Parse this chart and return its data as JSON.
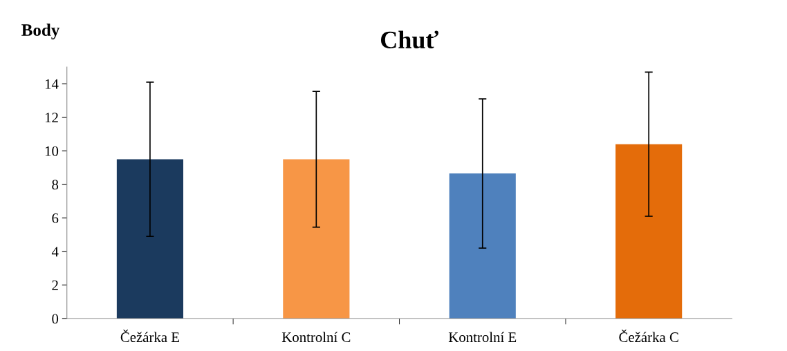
{
  "chart_data": {
    "type": "bar",
    "title": "Chuť",
    "ylabel": "Body",
    "categories": [
      "Čežárka E",
      "Kontrolní C",
      "Kontrolní E",
      "Čežárka C"
    ],
    "values": [
      9.5,
      9.5,
      8.65,
      10.4
    ],
    "errors": [
      4.6,
      4.05,
      4.45,
      4.3
    ],
    "colors": [
      "#1b3a5e",
      "#f79646",
      "#4f81bd",
      "#e46c0a"
    ],
    "ylim": [
      0,
      15
    ],
    "yticks": [
      0,
      2,
      4,
      6,
      8,
      10,
      12,
      14
    ],
    "grid": false,
    "legend": false
  }
}
